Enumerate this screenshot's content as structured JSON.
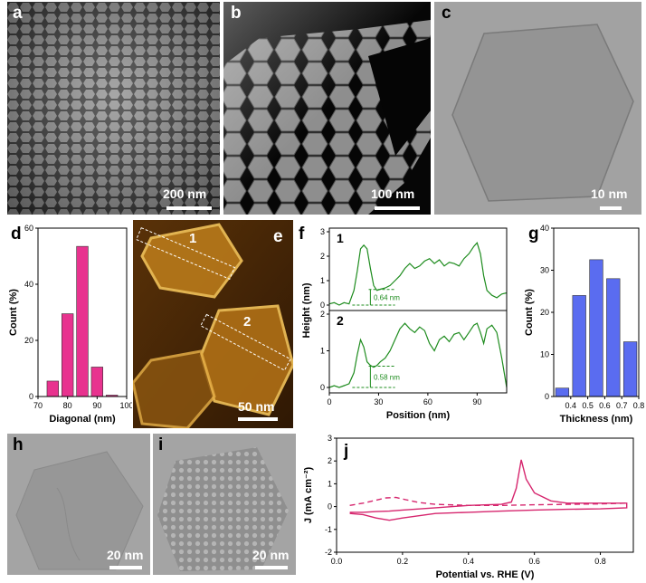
{
  "panels": {
    "a": {
      "letter": "a",
      "scale_label": "200 nm"
    },
    "b": {
      "letter": "b",
      "scale_label": "100 nm"
    },
    "c": {
      "letter": "c",
      "scale_label": "10 nm"
    },
    "e": {
      "letter": "e",
      "scale_label": "50 nm",
      "line_labels": [
        "1",
        "2"
      ]
    },
    "h": {
      "letter": "h",
      "scale_label": "20 nm"
    },
    "i": {
      "letter": "i",
      "scale_label": "20 nm"
    }
  },
  "chart_data": [
    {
      "id": "d",
      "letter": "d",
      "type": "bar",
      "x": [
        75,
        80,
        85,
        90,
        95,
        100
      ],
      "values": [
        5.5,
        29.5,
        53.5,
        10.5,
        0.5,
        0
      ],
      "xlabel": "Diagonal (nm)",
      "ylabel": "Count (%)",
      "xlim": [
        70,
        100
      ],
      "ylim": [
        0,
        60
      ],
      "xticks": [
        70,
        80,
        90,
        100
      ],
      "yticks": [
        0,
        20,
        40,
        60
      ],
      "color": "#e8338f"
    },
    {
      "id": "f",
      "letter": "f",
      "type": "line",
      "xlabel": "Position (nm)",
      "ylabel": "Height (nm)",
      "xlim": [
        0,
        108
      ],
      "xticks": [
        0,
        30,
        60,
        90
      ],
      "color": "#1e8c1e",
      "series": [
        {
          "name": "1",
          "ylim": [
            0,
            3
          ],
          "yticks": [
            0,
            1,
            2,
            3
          ],
          "annotation": "0.64 nm",
          "x": [
            0,
            3,
            6,
            9,
            12,
            15,
            17,
            19,
            21,
            23,
            25,
            27,
            29,
            31,
            34,
            37,
            40,
            43,
            46,
            49,
            52,
            55,
            58,
            61,
            64,
            67,
            70,
            73,
            76,
            79,
            82,
            85,
            88,
            90,
            92,
            94,
            96,
            99,
            102,
            105,
            108
          ],
          "values": [
            0.05,
            0.1,
            0.0,
            0.1,
            0.05,
            0.6,
            1.4,
            2.3,
            2.45,
            2.3,
            1.5,
            0.8,
            0.6,
            0.65,
            0.7,
            0.8,
            1.0,
            1.2,
            1.5,
            1.7,
            1.5,
            1.6,
            1.8,
            1.9,
            1.7,
            1.85,
            1.6,
            1.75,
            1.7,
            1.6,
            1.9,
            2.1,
            2.4,
            2.55,
            2.1,
            1.2,
            0.6,
            0.4,
            0.3,
            0.45,
            0.5
          ]
        },
        {
          "name": "2",
          "ylim": [
            0,
            2
          ],
          "yticks": [
            0,
            1,
            2
          ],
          "annotation": "0.58 nm",
          "x": [
            0,
            3,
            6,
            9,
            12,
            15,
            17,
            19,
            21,
            23,
            25,
            27,
            29,
            31,
            34,
            37,
            40,
            43,
            46,
            49,
            52,
            55,
            58,
            61,
            64,
            67,
            70,
            73,
            76,
            79,
            82,
            85,
            88,
            90,
            92,
            94,
            96,
            99,
            102,
            105,
            108
          ],
          "values": [
            0.0,
            0.05,
            0.0,
            0.05,
            0.1,
            0.4,
            0.9,
            1.3,
            1.1,
            0.7,
            0.6,
            0.55,
            0.6,
            0.7,
            0.8,
            1.0,
            1.3,
            1.6,
            1.75,
            1.6,
            1.5,
            1.65,
            1.55,
            1.2,
            1.0,
            1.3,
            1.4,
            1.25,
            1.45,
            1.5,
            1.3,
            1.5,
            1.7,
            1.75,
            1.5,
            1.2,
            1.6,
            1.7,
            1.5,
            0.8,
            0.0
          ]
        }
      ]
    },
    {
      "id": "g",
      "letter": "g",
      "type": "bar",
      "x": [
        0.35,
        0.45,
        0.55,
        0.65,
        0.75
      ],
      "values": [
        2,
        24,
        32.5,
        28,
        13
      ],
      "xlabel": "Thickness (nm)",
      "ylabel": "Count (%)",
      "xlim": [
        0.3,
        0.8
      ],
      "ylim": [
        0,
        40
      ],
      "xticks": [
        0.4,
        0.5,
        0.6,
        0.7,
        0.8
      ],
      "yticks": [
        0,
        10,
        20,
        30,
        40
      ],
      "color": "#5a6cf0"
    },
    {
      "id": "j",
      "letter": "j",
      "type": "line",
      "xlabel": "Potential vs. RHE (V)",
      "ylabel": "J (mA cm⁻²)",
      "xlim": [
        0.0,
        0.9
      ],
      "ylim": [
        -2,
        3
      ],
      "xticks": [
        0.0,
        0.2,
        0.4,
        0.6,
        0.8
      ],
      "yticks": [
        -2,
        -1,
        0,
        1,
        2,
        3
      ],
      "color": "#d6266e",
      "series": [
        {
          "style": "solid",
          "x": [
            0.04,
            0.08,
            0.12,
            0.16,
            0.2,
            0.3,
            0.4,
            0.5,
            0.53,
            0.545,
            0.56,
            0.575,
            0.6,
            0.65,
            0.7,
            0.8,
            0.88,
            0.88,
            0.8,
            0.7,
            0.6,
            0.5,
            0.4,
            0.3,
            0.25,
            0.2,
            0.16,
            0.12,
            0.08,
            0.04
          ],
          "values": [
            -0.25,
            -0.25,
            -0.22,
            -0.2,
            -0.15,
            -0.05,
            0.05,
            0.1,
            0.2,
            0.8,
            2.05,
            1.2,
            0.6,
            0.25,
            0.15,
            0.15,
            0.15,
            -0.05,
            -0.1,
            -0.12,
            -0.15,
            -0.2,
            -0.25,
            -0.3,
            -0.4,
            -0.5,
            -0.6,
            -0.5,
            -0.35,
            -0.3
          ]
        },
        {
          "style": "dashed",
          "x": [
            0.04,
            0.08,
            0.12,
            0.15,
            0.18,
            0.21,
            0.25,
            0.3,
            0.4,
            0.5,
            0.6,
            0.7,
            0.8,
            0.88
          ],
          "values": [
            0.05,
            0.15,
            0.28,
            0.38,
            0.4,
            0.3,
            0.18,
            0.1,
            0.05,
            0.05,
            0.08,
            0.1,
            0.12,
            0.15
          ]
        }
      ]
    }
  ]
}
